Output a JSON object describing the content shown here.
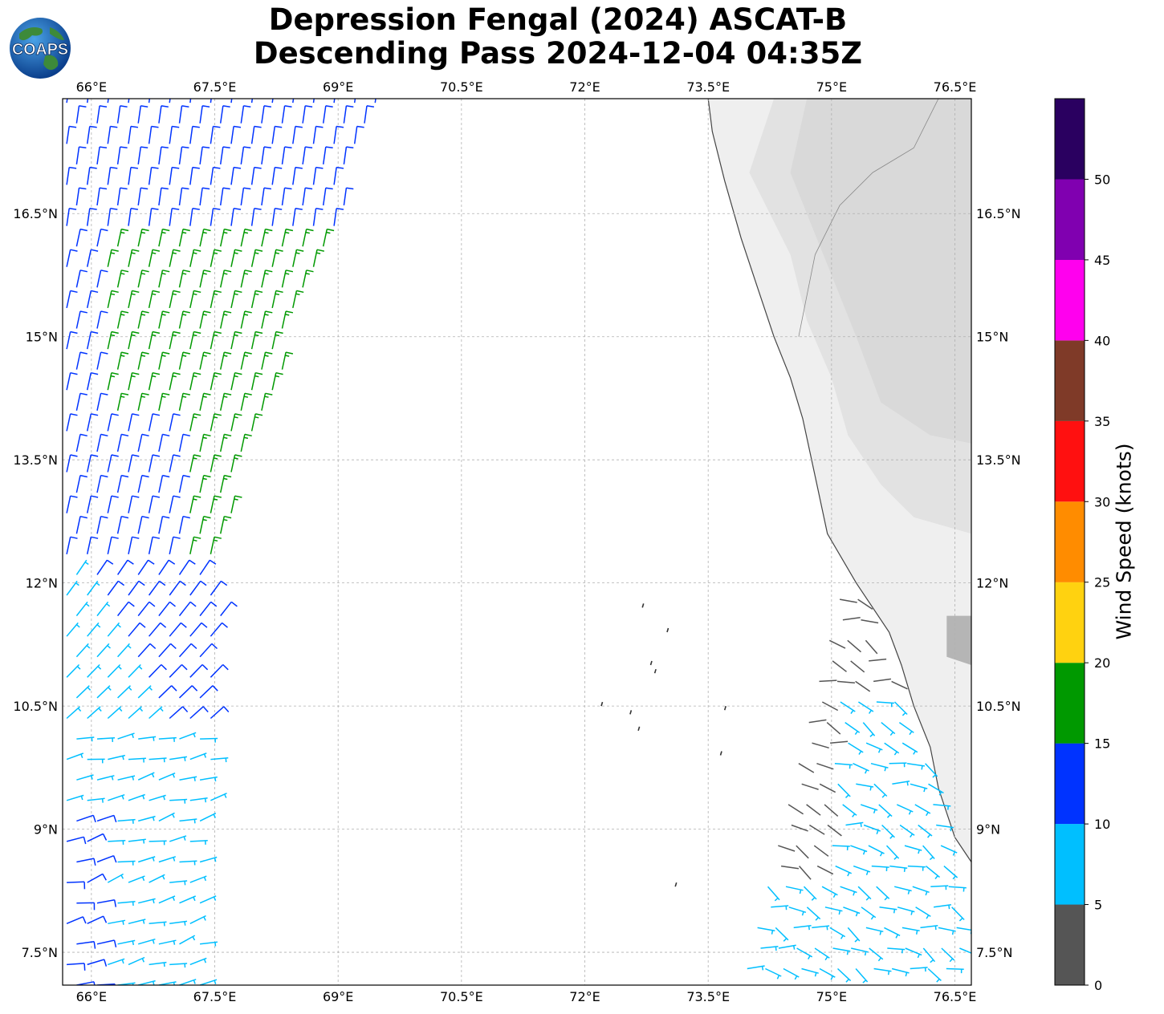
{
  "title": {
    "line1": "Depression Fengal (2024) ASCAT-B",
    "line2": "Descending Pass 2024-12-04 04:35Z"
  },
  "logo": {
    "text": "COAPS",
    "icon": "globe-logo-icon"
  },
  "map": {
    "projection": "plate-carree",
    "lon_range": [
      65.65,
      76.7
    ],
    "lat_range": [
      7.1,
      17.9
    ],
    "lon_ticks": [
      66,
      67.5,
      69,
      70.5,
      72,
      73.5,
      75,
      76.5
    ],
    "lat_ticks": [
      7.5,
      9,
      10.5,
      12,
      13.5,
      15,
      16.5
    ],
    "lon_tick_labels": [
      "66°E",
      "67.5°E",
      "69°E",
      "70.5°E",
      "72°E",
      "73.5°E",
      "75°E",
      "76.5°E"
    ],
    "lat_tick_labels": [
      "7.5°N",
      "9°N",
      "10.5°N",
      "12°N",
      "13.5°N",
      "15°N",
      "16.5°N"
    ],
    "gridlines": true,
    "land_shading": "grayscale",
    "coastline_color": "#444444",
    "swaths": [
      {
        "name": "west",
        "lat_range": [
          7.1,
          17.9
        ]
      },
      {
        "name": "east",
        "lat_range": [
          7.1,
          12.0
        ]
      }
    ]
  },
  "colorbar": {
    "label": "Wind Speed (knots)",
    "tick_labels": [
      "0",
      "5",
      "10",
      "15",
      "20",
      "25",
      "30",
      "35",
      "40",
      "45",
      "50"
    ],
    "bins": [
      {
        "min": 0,
        "max": 5,
        "color": "#555555"
      },
      {
        "min": 5,
        "max": 10,
        "color": "#00bfff"
      },
      {
        "min": 10,
        "max": 15,
        "color": "#0033ff"
      },
      {
        "min": 15,
        "max": 20,
        "color": "#009900"
      },
      {
        "min": 20,
        "max": 25,
        "color": "#ffd210"
      },
      {
        "min": 25,
        "max": 30,
        "color": "#ff8c00"
      },
      {
        "min": 30,
        "max": 35,
        "color": "#ff1010"
      },
      {
        "min": 35,
        "max": 40,
        "color": "#7f3a28"
      },
      {
        "min": 40,
        "max": 45,
        "color": "#ff00ee"
      },
      {
        "min": 45,
        "max": 50,
        "color": "#8000b0"
      },
      {
        "min": 50,
        "max": 55,
        "color": "#2a0060"
      }
    ]
  }
}
